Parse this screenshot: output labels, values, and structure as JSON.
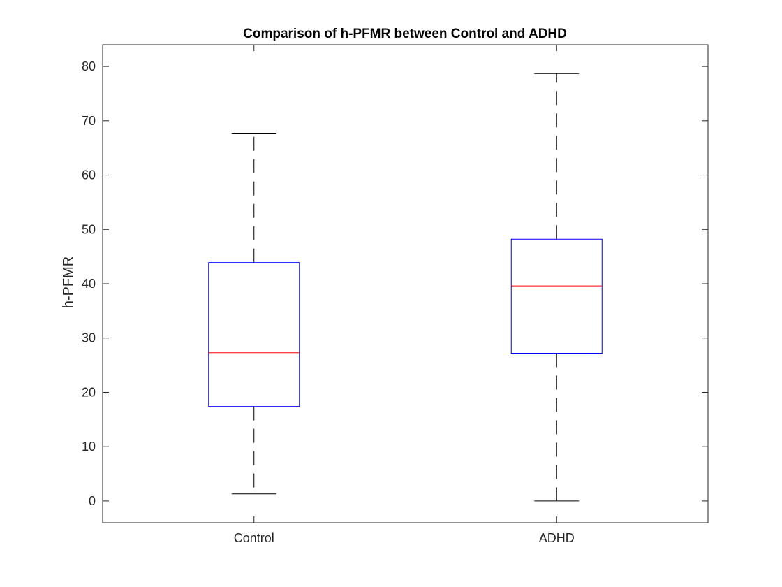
{
  "chart_data": {
    "type": "box",
    "title": "Comparison of h-PFMR between Control and ADHD",
    "xlabel": "",
    "ylabel": "h-PFMR",
    "ylim": [
      -4,
      84
    ],
    "yticks": [
      0,
      10,
      20,
      30,
      40,
      50,
      60,
      70,
      80
    ],
    "grid": false,
    "categories": [
      "Control",
      "ADHD"
    ],
    "boxes": [
      {
        "category": "Control",
        "whisker_low": 1.3,
        "q1": 17.4,
        "median": 27.3,
        "q3": 43.9,
        "whisker_high": 67.6
      },
      {
        "category": "ADHD",
        "whisker_low": 0.0,
        "q1": 27.2,
        "median": 39.6,
        "q3": 48.2,
        "whisker_high": 78.7
      }
    ],
    "colors": {
      "box": "#0000ff",
      "median": "#ff0000",
      "whisker": "#000000",
      "axes": "#262626"
    }
  }
}
